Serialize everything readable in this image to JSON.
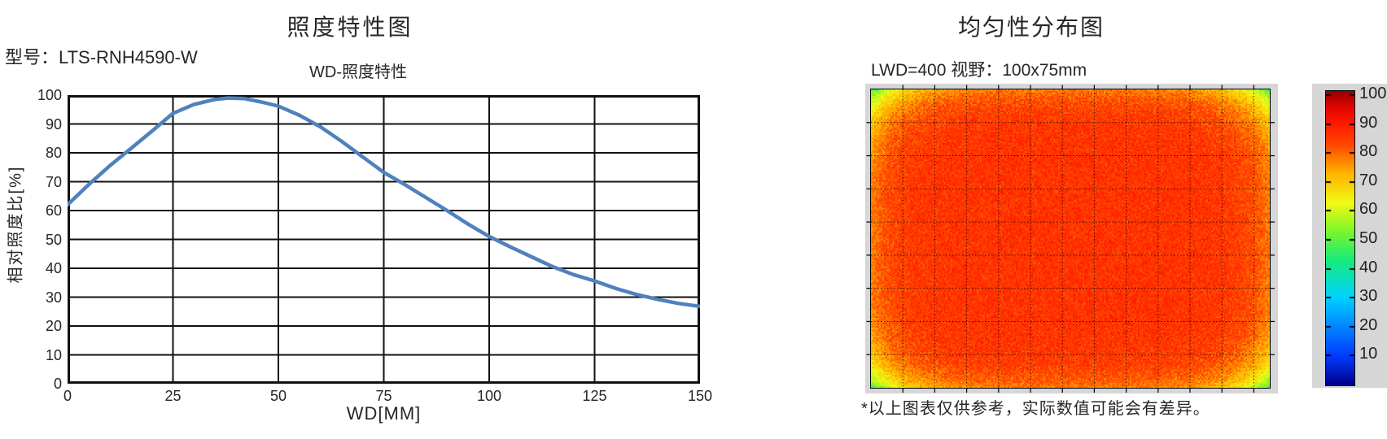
{
  "left_panel": {
    "title": "照度特性图",
    "model_label": "型号：LTS-RNH4590-W"
  },
  "right_panel": {
    "title": "均匀性分布图",
    "condition_label": "LWD=400  视野：100x75mm",
    "footnote": "*以上图表仅供参考，实际数值可能会有差异。"
  },
  "colors": {
    "curve": "#4f81bd",
    "grid": "#111111",
    "text": "#262626",
    "figure_gray": "#d6d6d6",
    "heat_grid_line": "#000000"
  },
  "chart_data": [
    {
      "type": "line",
      "title": "WD-照度特性",
      "xlabel": "WD[MM]",
      "ylabel": "相对照度比[%]",
      "xlim": [
        0,
        150
      ],
      "ylim": [
        0,
        100
      ],
      "x_ticks": [
        0,
        25,
        50,
        75,
        100,
        125,
        150
      ],
      "y_ticks": [
        0,
        10,
        20,
        30,
        40,
        50,
        60,
        70,
        80,
        90,
        100
      ],
      "grid": "on",
      "legend": "none",
      "series": [
        {
          "name": "相对照度比",
          "color": "#4f81bd",
          "points": [
            [
              0,
              62
            ],
            [
              5,
              69
            ],
            [
              10,
              75.5
            ],
            [
              15,
              81.5
            ],
            [
              20,
              87.5
            ],
            [
              25,
              93.7
            ],
            [
              30,
              96.8
            ],
            [
              35,
              98.5
            ],
            [
              38,
              99
            ],
            [
              42,
              98.8
            ],
            [
              46,
              97.6
            ],
            [
              50,
              96.2
            ],
            [
              55,
              93
            ],
            [
              60,
              89
            ],
            [
              65,
              84
            ],
            [
              70,
              78.6
            ],
            [
              75,
              73.2
            ],
            [
              80,
              69
            ],
            [
              85,
              64.5
            ],
            [
              90,
              60
            ],
            [
              95,
              55.3
            ],
            [
              100,
              51
            ],
            [
              105,
              47.4
            ],
            [
              110,
              44
            ],
            [
              115,
              40.6
            ],
            [
              120,
              37.8
            ],
            [
              125,
              35.6
            ],
            [
              130,
              33
            ],
            [
              135,
              30.9
            ],
            [
              140,
              29.2
            ],
            [
              145,
              27.8
            ],
            [
              150,
              26.8
            ]
          ]
        }
      ]
    },
    {
      "type": "heatmap",
      "title": "均匀性分布图",
      "condition": "LWD=400  视野：100x75mm",
      "colormap": "jet",
      "value_range": [
        0,
        100
      ],
      "colorbar_ticks": [
        100,
        90,
        80,
        70,
        60,
        50,
        40,
        30,
        20,
        10
      ],
      "grid": "dashed",
      "pattern": {
        "shape": "elliptical falloff, red-orange core, orange edges, green corners",
        "center_value": 85,
        "edge_value": 77,
        "corner_value": 47,
        "noise_amplitude": 3.5
      },
      "colormap_stops": [
        [
          0.0,
          "#00008C"
        ],
        [
          0.1,
          "#003CFF"
        ],
        [
          0.3,
          "#00D2FF"
        ],
        [
          0.42,
          "#14EB82"
        ],
        [
          0.52,
          "#78F52D"
        ],
        [
          0.62,
          "#F0FA14"
        ],
        [
          0.72,
          "#FFB400"
        ],
        [
          0.82,
          "#FF4600"
        ],
        [
          0.9,
          "#FF1400"
        ],
        [
          0.95,
          "#DC0500"
        ],
        [
          1.0,
          "#960000"
        ]
      ]
    }
  ]
}
